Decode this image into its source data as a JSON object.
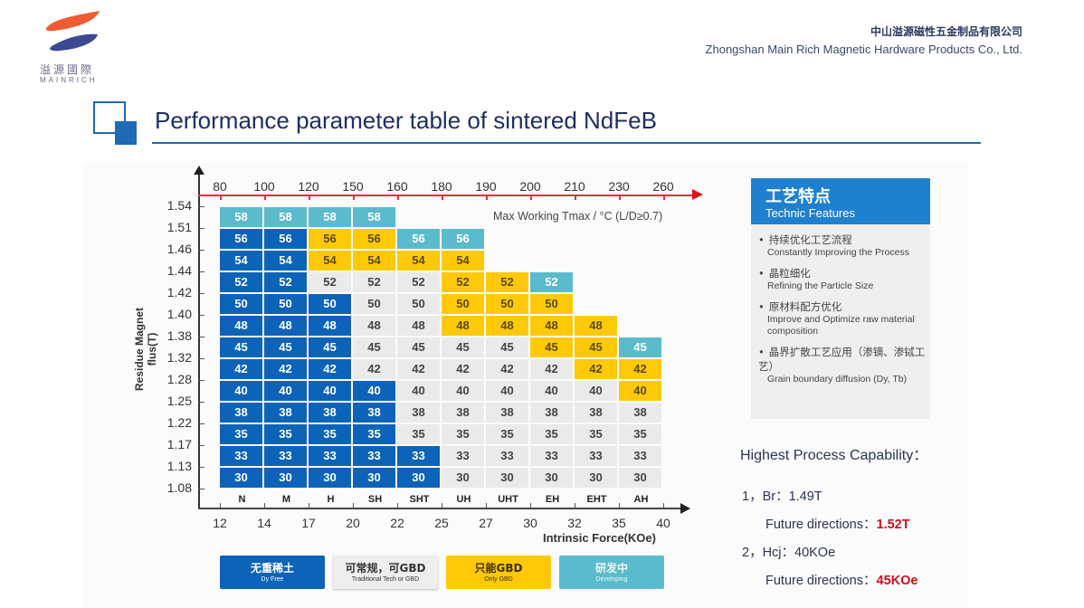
{
  "header": {
    "logo": {
      "cn": "溢源國際",
      "en": "MAINRICH",
      "icon": "brush-stroke-logo-icon"
    },
    "company_cn": "中山溢源磁性五金制品有限公司",
    "company_en": "Zhongshan Main Rich Magnetic Hardware Products Co., Ltd."
  },
  "page_title": "Performance parameter table of sintered NdFeB",
  "colors": {
    "dy_free": "#0d63b8",
    "traditional": "#eaeaea",
    "only_gbd": "#ffc90a",
    "developing": "#5bbbcc",
    "temp_axis": "#e0323c",
    "accent_blue": "#1e6ab4",
    "highlight_red": "#c8111e"
  },
  "chart_data": {
    "type": "table",
    "title": "Performance parameter table of sintered NdFeB",
    "xlabel": "Intrinsic Force(KOe)",
    "ylabel": "Residue Magnet flus(T)",
    "top_axis_label": "Max Working Tmax / °C (L/D≥0.7)",
    "grades": [
      "N",
      "M",
      "H",
      "SH",
      "SHT",
      "UH",
      "UHT",
      "EH",
      "EHT",
      "AH"
    ],
    "x_ticks": [
      "12",
      "14",
      "17",
      "20",
      "22",
      "25",
      "27",
      "30",
      "32",
      "35",
      "40"
    ],
    "temp_ticks": [
      "80",
      "100",
      "120",
      "150",
      "160",
      "180",
      "190",
      "200",
      "210",
      "230",
      "260"
    ],
    "y_ticks": [
      "1.54",
      "1.51",
      "1.46",
      "1.44",
      "1.42",
      "1.40",
      "1.38",
      "1.32",
      "1.28",
      "1.25",
      "1.22",
      "1.17",
      "1.13",
      "1.08"
    ],
    "legend": [
      {
        "code": "B",
        "cn": "无重稀土",
        "en": "Dy Free"
      },
      {
        "code": "G",
        "cn": "可常规，可GBD",
        "en": "Traditional Tech or GBD"
      },
      {
        "code": "Y",
        "cn": "只能GBD",
        "en": "Only GBD"
      },
      {
        "code": "C",
        "cn": "研发中",
        "en": "Developing"
      }
    ],
    "rows": [
      {
        "value": "58",
        "cells": [
          "C",
          "C",
          "C",
          "C",
          "",
          "",
          "",
          "",
          "",
          ""
        ]
      },
      {
        "value": "56",
        "cells": [
          "B",
          "B",
          "Y",
          "Y",
          "C",
          "C",
          "",
          "",
          "",
          ""
        ]
      },
      {
        "value": "54",
        "cells": [
          "B",
          "B",
          "Y",
          "Y",
          "Y",
          "Y",
          "",
          "",
          "",
          ""
        ]
      },
      {
        "value": "52",
        "cells": [
          "B",
          "B",
          "G",
          "G",
          "G",
          "Y",
          "Y",
          "C",
          "",
          ""
        ]
      },
      {
        "value": "50",
        "cells": [
          "B",
          "B",
          "B",
          "G",
          "G",
          "Y",
          "Y",
          "Y",
          "",
          ""
        ]
      },
      {
        "value": "48",
        "cells": [
          "B",
          "B",
          "B",
          "G",
          "G",
          "Y",
          "Y",
          "Y",
          "Y",
          ""
        ]
      },
      {
        "value": "45",
        "cells": [
          "B",
          "B",
          "B",
          "G",
          "G",
          "G",
          "G",
          "Y",
          "Y",
          "C"
        ]
      },
      {
        "value": "42",
        "cells": [
          "B",
          "B",
          "B",
          "G",
          "G",
          "G",
          "G",
          "G",
          "Y",
          "Y"
        ]
      },
      {
        "value": "40",
        "cells": [
          "B",
          "B",
          "B",
          "B",
          "G",
          "G",
          "G",
          "G",
          "G",
          "Y"
        ]
      },
      {
        "value": "38",
        "cells": [
          "B",
          "B",
          "B",
          "B",
          "G",
          "G",
          "G",
          "G",
          "G",
          "G"
        ]
      },
      {
        "value": "35",
        "cells": [
          "B",
          "B",
          "B",
          "B",
          "G",
          "G",
          "G",
          "G",
          "G",
          "G"
        ]
      },
      {
        "value": "33",
        "cells": [
          "B",
          "B",
          "B",
          "B",
          "B",
          "G",
          "G",
          "G",
          "G",
          "G"
        ]
      },
      {
        "value": "30",
        "cells": [
          "B",
          "B",
          "B",
          "B",
          "B",
          "G",
          "G",
          "G",
          "G",
          "G"
        ]
      }
    ]
  },
  "technic_features": {
    "title_cn": "工艺特点",
    "title_en": "Technic Features",
    "items": [
      {
        "cn": "持续优化工艺流程",
        "en": "Constantly Improving the Process"
      },
      {
        "cn": "晶粒细化",
        "en": "Refining the Particle Size"
      },
      {
        "cn": "原材料配方优化",
        "en": "Improve and Optimize raw material composition"
      },
      {
        "cn": "晶界扩散工艺应用（渗镝、渗铽工艺）",
        "en": "Grain boundary diffusion (Dy, Tb)"
      }
    ]
  },
  "capability": {
    "title": "Highest Process Capability：",
    "br_line": "1，Br：1.49T",
    "br_future_label": "Future directions：",
    "br_future_value": "1.52T",
    "hcj_line": "2，Hcj：40KOe",
    "hcj_future_label": "Future directions：",
    "hcj_future_value": "45KOe"
  }
}
